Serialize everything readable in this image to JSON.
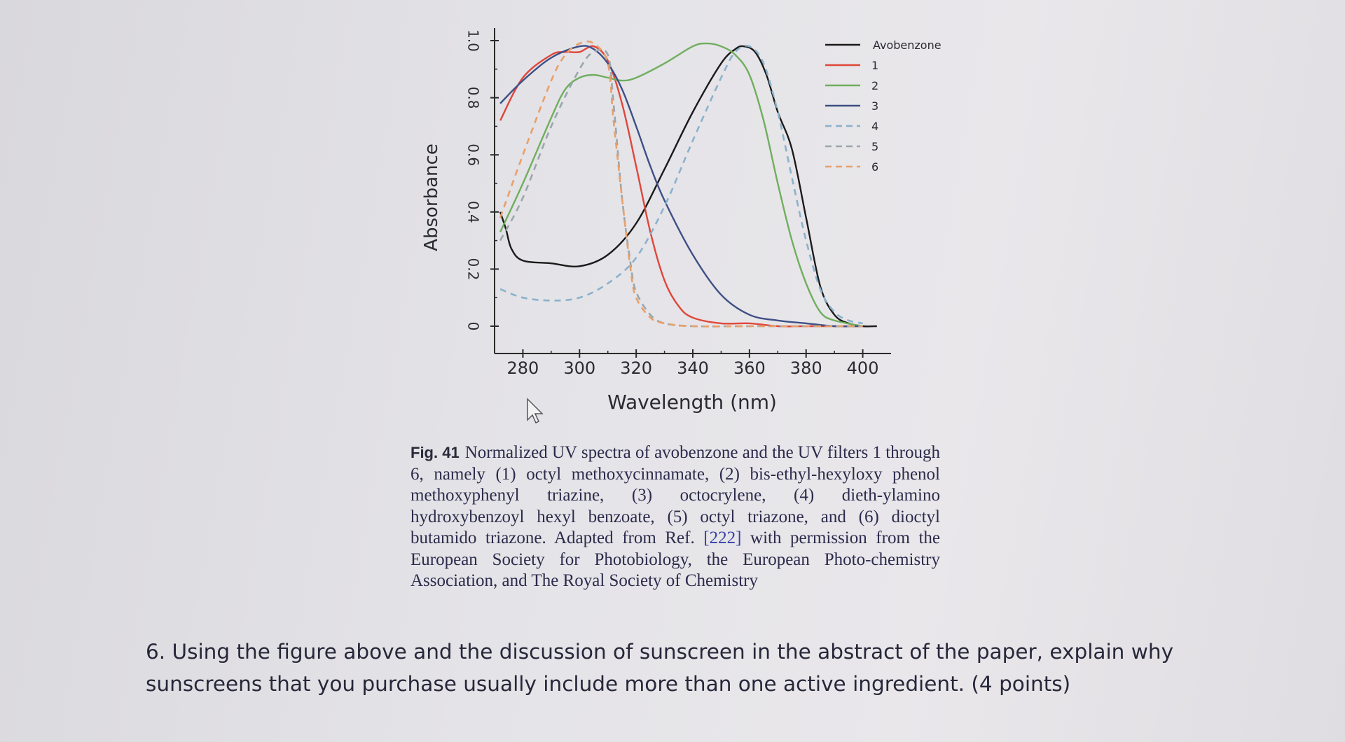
{
  "chart_data": {
    "type": "line",
    "xlabel": "Wavelength (nm)",
    "ylabel": "Absorbance",
    "xlim": [
      270,
      410
    ],
    "ylim": [
      0,
      1.0
    ],
    "x_ticks": [
      "280",
      "300",
      "320",
      "340",
      "360",
      "380",
      "400"
    ],
    "y_ticks": [
      "0",
      "0.2",
      "0.4",
      "0.6",
      "0.8",
      "1.0"
    ],
    "legend_position": "top-right",
    "series": [
      {
        "name": "Avobenzone",
        "color": "#1a1a1a",
        "dash": "solid",
        "x": [
          272,
          274,
          276,
          280,
          290,
          300,
          310,
          320,
          330,
          340,
          350,
          355,
          358,
          362,
          366,
          370,
          375,
          380,
          385,
          390,
          395,
          400,
          405
        ],
        "y": [
          0.4,
          0.34,
          0.27,
          0.23,
          0.22,
          0.21,
          0.25,
          0.36,
          0.55,
          0.75,
          0.92,
          0.97,
          0.98,
          0.96,
          0.88,
          0.75,
          0.62,
          0.38,
          0.14,
          0.04,
          0.01,
          0.0,
          0.0
        ]
      },
      {
        "name": "1",
        "color": "#e0463a",
        "dash": "solid",
        "x": [
          272,
          280,
          290,
          295,
          300,
          305,
          310,
          315,
          320,
          325,
          330,
          335,
          340,
          350,
          360,
          370,
          380,
          390,
          400
        ],
        "y": [
          0.72,
          0.87,
          0.95,
          0.96,
          0.96,
          0.98,
          0.93,
          0.78,
          0.56,
          0.33,
          0.16,
          0.07,
          0.03,
          0.01,
          0.01,
          0.0,
          0.0,
          0.0,
          0.0
        ]
      },
      {
        "name": "2",
        "color": "#6fae5e",
        "dash": "solid",
        "x": [
          272,
          280,
          290,
          295,
          300,
          305,
          310,
          315,
          320,
          330,
          340,
          345,
          350,
          355,
          360,
          365,
          370,
          375,
          380,
          385,
          390,
          400
        ],
        "y": [
          0.33,
          0.5,
          0.73,
          0.83,
          0.87,
          0.88,
          0.87,
          0.86,
          0.87,
          0.92,
          0.98,
          0.99,
          0.98,
          0.95,
          0.88,
          0.72,
          0.5,
          0.3,
          0.15,
          0.05,
          0.02,
          0.0
        ]
      },
      {
        "name": "3",
        "color": "#3e4f86",
        "dash": "solid",
        "x": [
          272,
          280,
          290,
          300,
          305,
          310,
          315,
          320,
          325,
          330,
          340,
          350,
          360,
          370,
          380,
          390,
          400
        ],
        "y": [
          0.78,
          0.86,
          0.94,
          0.98,
          0.97,
          0.92,
          0.83,
          0.7,
          0.56,
          0.44,
          0.25,
          0.11,
          0.04,
          0.02,
          0.01,
          0.0,
          0.0
        ]
      },
      {
        "name": "4",
        "color": "#8ab2cc",
        "dash": "dashed",
        "x": [
          272,
          280,
          290,
          300,
          310,
          320,
          330,
          340,
          350,
          355,
          360,
          365,
          370,
          375,
          380,
          385,
          390,
          395,
          400
        ],
        "y": [
          0.13,
          0.1,
          0.09,
          0.1,
          0.15,
          0.24,
          0.42,
          0.65,
          0.87,
          0.96,
          0.98,
          0.92,
          0.75,
          0.52,
          0.3,
          0.13,
          0.05,
          0.02,
          0.01
        ]
      },
      {
        "name": "5",
        "color": "#9aa6ae",
        "dash": "dashed",
        "x": [
          272,
          280,
          290,
          300,
          305,
          310,
          312,
          315,
          318,
          320,
          325,
          330,
          340,
          360,
          380,
          400
        ],
        "y": [
          0.3,
          0.45,
          0.7,
          0.9,
          0.96,
          0.95,
          0.78,
          0.45,
          0.22,
          0.12,
          0.04,
          0.01,
          0.0,
          0.0,
          0.0,
          0.0
        ]
      },
      {
        "name": "6",
        "color": "#e8a06a",
        "dash": "dashed",
        "x": [
          272,
          280,
          290,
          295,
          300,
          305,
          310,
          312,
          315,
          318,
          320,
          325,
          330,
          340,
          360,
          380,
          400
        ],
        "y": [
          0.38,
          0.6,
          0.86,
          0.95,
          0.99,
          0.99,
          0.92,
          0.72,
          0.45,
          0.2,
          0.1,
          0.03,
          0.01,
          0.0,
          0.0,
          0.0,
          0.0
        ]
      }
    ]
  },
  "caption": {
    "label": "Fig. 41",
    "text_before_ref": "Normalized UV spectra of avobenzone and the UV filters 1 through 6, namely (1) octyl methoxycinnamate, (2) bis-ethyl-hexyloxy phenol methoxyphenyl triazine, (3) octocrylene, (4) dieth-ylamino hydroxybenzoyl hexyl benzoate, (5) octyl triazone, and (6) dioctyl butamido triazone. Adapted from Ref.",
    "ref": "[222]",
    "text_after_ref": "with permission from the European Society for Photobiology, the European Photo-chemistry Association, and The Royal Society of Chemistry"
  },
  "question": "6. Using the figure above and the discussion of sunscreen in the abstract of the paper, explain why sunscreens that you purchase usually include more than one active ingredient. (4 points)"
}
